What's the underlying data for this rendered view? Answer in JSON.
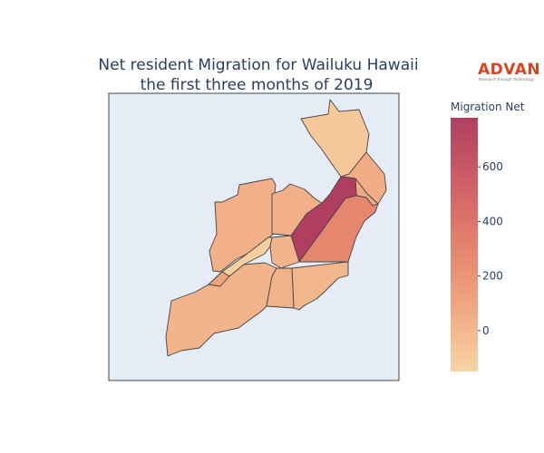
{
  "title": {
    "line1": "Net resident Migration for Wailuku Hawaii",
    "line2": "the first three months of 2019"
  },
  "logo": {
    "brand": "ADVAN",
    "tagline": "Research through Technology"
  },
  "colorbar": {
    "title": "Migration Net",
    "min": -150,
    "max": 780,
    "ticks": [
      0,
      200,
      400,
      600
    ],
    "tick_labels": [
      "0",
      "200",
      "400",
      "600"
    ],
    "scale": [
      "#f7d4a4",
      "#f0a880",
      "#e4826c",
      "#cf5e66",
      "#b03e60"
    ]
  },
  "map": {
    "background": "#e5ecf6",
    "regions": [
      {
        "id": "north-tip",
        "value": -80
      },
      {
        "id": "northeast-upper",
        "value": 50
      },
      {
        "id": "northeast-mid",
        "value": 70
      },
      {
        "id": "central-spine",
        "value": 780
      },
      {
        "id": "east-coast",
        "value": 290
      },
      {
        "id": "west-lobe",
        "value": 40
      },
      {
        "id": "north-central",
        "value": 40
      },
      {
        "id": "narrow-strip",
        "value": -120
      },
      {
        "id": "small-center",
        "value": 20
      },
      {
        "id": "south-large",
        "value": 20
      },
      {
        "id": "southeast",
        "value": 10
      },
      {
        "id": "south-center",
        "value": 30
      },
      {
        "id": "southwest-strip",
        "value": 110
      }
    ]
  }
}
